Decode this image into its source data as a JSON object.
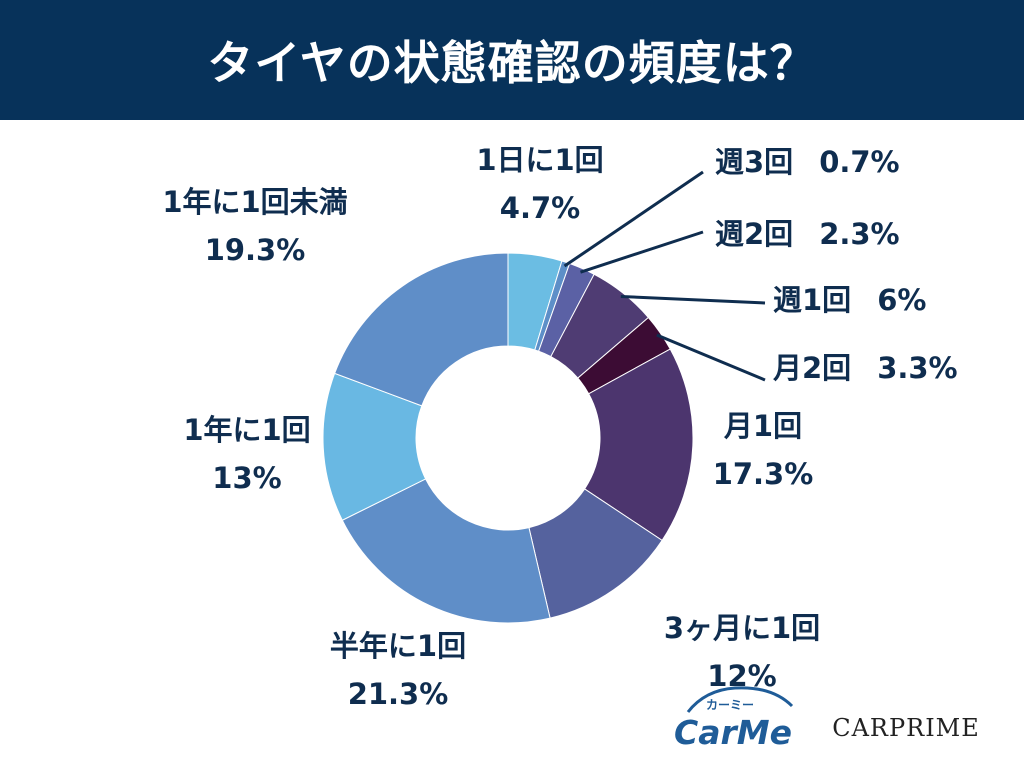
{
  "header": {
    "title": "タイヤの状態確認の頻度は？"
  },
  "chart_data": {
    "type": "pie",
    "title": "タイヤの状態確認の頻度は？",
    "donut": true,
    "slices": [
      {
        "label": "1日に1回",
        "value": 4.7,
        "value_label": "4.7%",
        "color": "#6bbde3"
      },
      {
        "label": "週3回",
        "value": 0.7,
        "value_label": "0.7%",
        "color": "#5d8fc8"
      },
      {
        "label": "週2回",
        "value": 2.3,
        "value_label": "2.3%",
        "color": "#5b61a5"
      },
      {
        "label": "週1回",
        "value": 6,
        "value_label": "6%",
        "color": "#4f3c73"
      },
      {
        "label": "月2回",
        "value": 3.3,
        "value_label": "3.3%",
        "color": "#3c0c34"
      },
      {
        "label": "月1回",
        "value": 17.3,
        "value_label": "17.3%",
        "color": "#4c356e"
      },
      {
        "label": "3ヶ月に1回",
        "value": 12,
        "value_label": "12%",
        "color": "#55629e"
      },
      {
        "label": "半年に1回",
        "value": 21.3,
        "value_label": "21.3%",
        "color": "#5f8ec8"
      },
      {
        "label": "1年に1回",
        "value": 13,
        "value_label": "13%",
        "color": "#69b8e3"
      },
      {
        "label": "1年に1回未満",
        "value": 19.3,
        "value_label": "19.3%",
        "color": "#5f8ec8"
      }
    ]
  },
  "logos": {
    "carme": "CarMe",
    "carme_ruby": "カーミー",
    "carprime": "CARPRIME"
  },
  "colors": {
    "header_bg": "#07325a",
    "label_text": "#0f2d4f",
    "leader_line": "#0f2d4f"
  }
}
